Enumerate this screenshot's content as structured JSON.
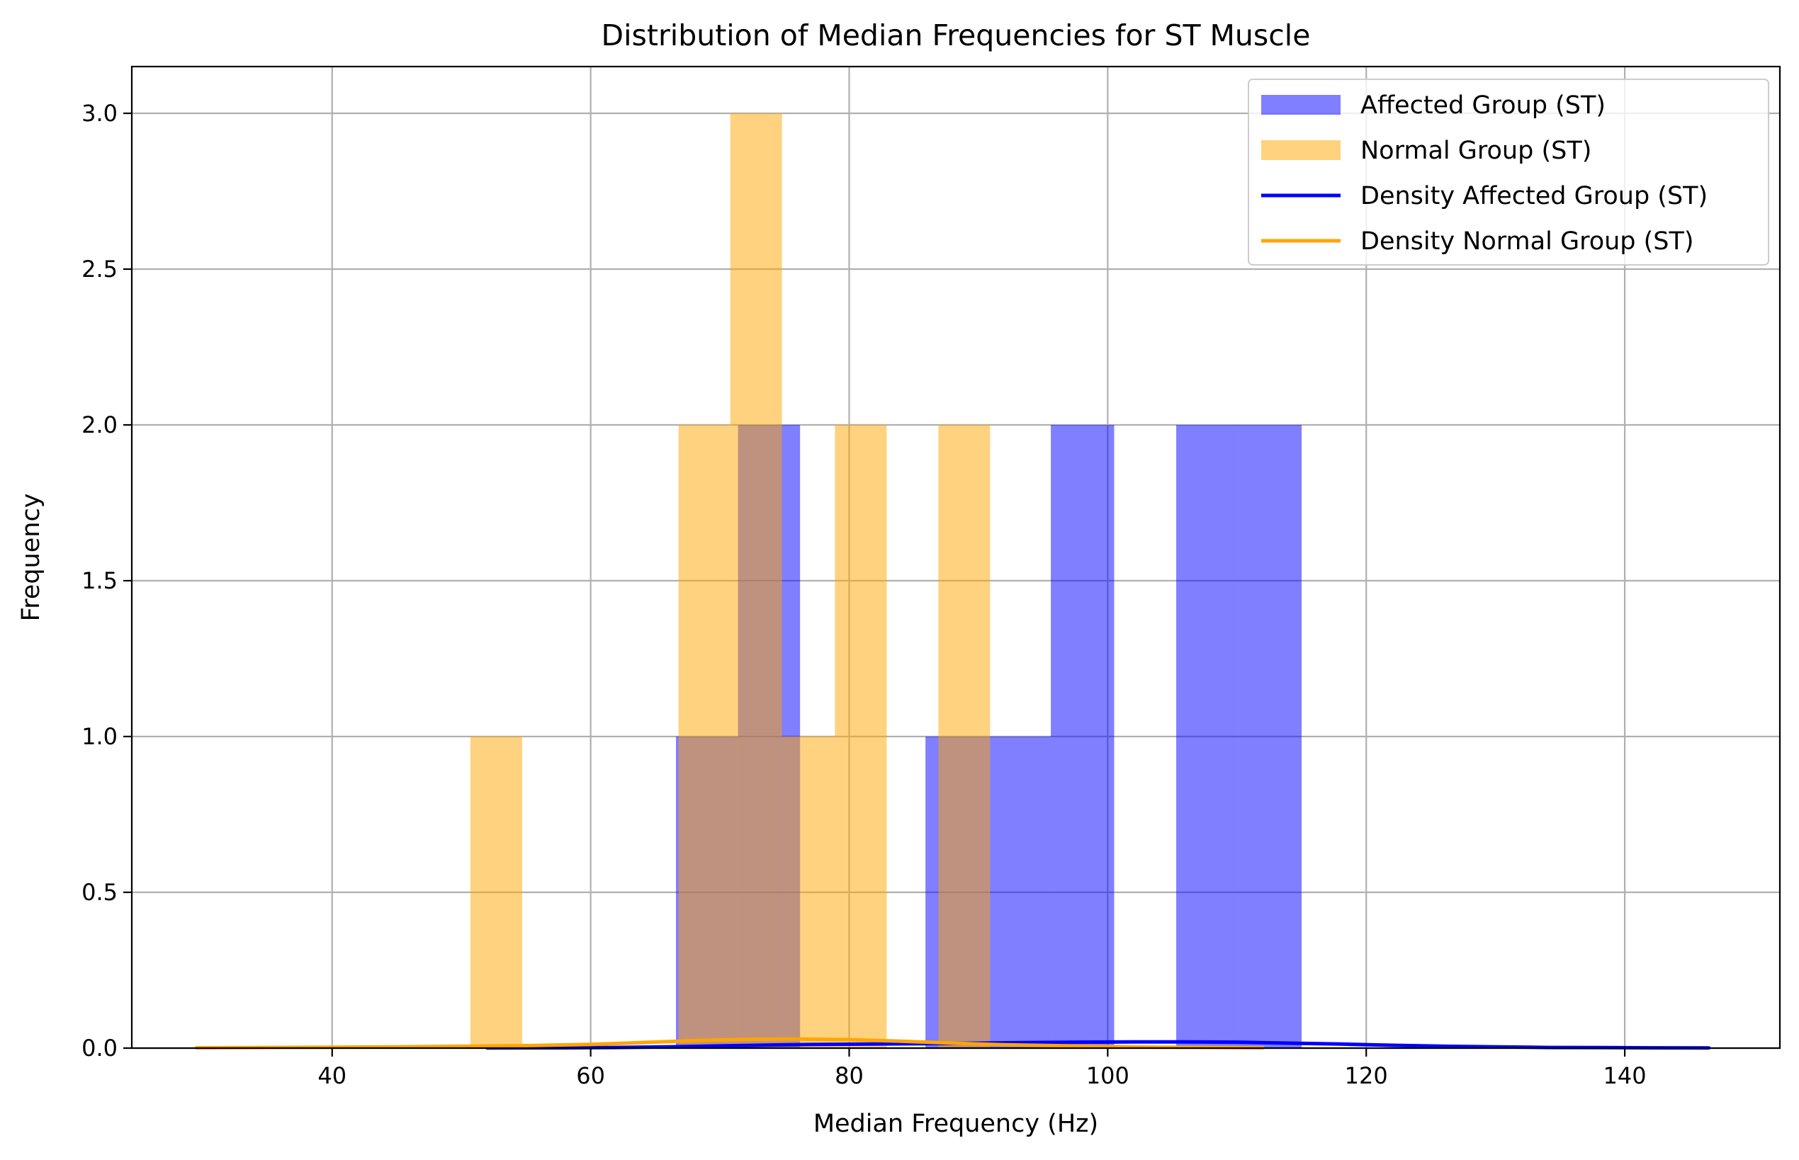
{
  "chart_data": {
    "type": "bar",
    "title": "Distribution of Median Frequencies for ST Muscle",
    "xlabel": "Median Frequency (Hz)",
    "ylabel": "Frequency",
    "xlim": [
      24.5,
      152.0
    ],
    "ylim": [
      0,
      3.15
    ],
    "xticks": [
      40,
      60,
      80,
      100,
      120,
      140
    ],
    "xtick_labels": [
      "40",
      "60",
      "80",
      "100",
      "120",
      "140"
    ],
    "yticks": [
      0,
      0.5,
      1,
      1.5,
      2,
      2.5,
      3
    ],
    "ytick_labels": [
      "0.0",
      "0.5",
      "1.0",
      "1.5",
      "2.0",
      "2.5",
      "3.0"
    ],
    "grid": true,
    "legend_position": "top-right",
    "series": [
      {
        "name": "Affected Group (ST)",
        "kind": "histogram",
        "color": "#0000ff",
        "opacity": 0.5,
        "bins": [
          {
            "x0": 66.6,
            "x1": 71.4,
            "count": 1
          },
          {
            "x0": 71.4,
            "x1": 76.2,
            "count": 2
          },
          {
            "x0": 76.2,
            "x1": 81.1,
            "count": 0
          },
          {
            "x0": 81.1,
            "x1": 85.9,
            "count": 0
          },
          {
            "x0": 85.9,
            "x1": 90.8,
            "count": 1
          },
          {
            "x0": 90.8,
            "x1": 95.6,
            "count": 1
          },
          {
            "x0": 95.6,
            "x1": 100.5,
            "count": 2
          },
          {
            "x0": 100.5,
            "x1": 105.3,
            "count": 0
          },
          {
            "x0": 105.3,
            "x1": 110.2,
            "count": 2
          },
          {
            "x0": 110.2,
            "x1": 115.0,
            "count": 2
          }
        ]
      },
      {
        "name": "Normal Group (ST)",
        "kind": "histogram",
        "color": "#ffa500",
        "opacity": 0.5,
        "bins": [
          {
            "x0": 50.7,
            "x1": 54.7,
            "count": 1
          },
          {
            "x0": 54.7,
            "x1": 58.8,
            "count": 0
          },
          {
            "x0": 58.8,
            "x1": 62.8,
            "count": 0
          },
          {
            "x0": 62.8,
            "x1": 66.8,
            "count": 0
          },
          {
            "x0": 66.8,
            "x1": 70.8,
            "count": 2
          },
          {
            "x0": 70.8,
            "x1": 74.8,
            "count": 3
          },
          {
            "x0": 74.8,
            "x1": 78.9,
            "count": 1
          },
          {
            "x0": 78.9,
            "x1": 82.9,
            "count": 2
          },
          {
            "x0": 82.9,
            "x1": 86.9,
            "count": 0
          },
          {
            "x0": 86.9,
            "x1": 90.9,
            "count": 2
          }
        ]
      },
      {
        "name": "Density Affected Group (ST)",
        "kind": "line",
        "color": "#0000ff",
        "x": [
          52,
          58,
          62,
          66,
          70,
          74,
          78,
          82,
          86,
          90,
          94,
          98,
          102,
          106,
          110,
          114,
          118,
          122,
          126,
          130,
          134,
          138,
          142,
          146.5
        ],
        "y": [
          0.0004,
          0.001,
          0.002,
          0.004,
          0.007,
          0.01,
          0.012,
          0.013,
          0.014,
          0.016,
          0.018,
          0.019,
          0.02,
          0.02,
          0.019,
          0.016,
          0.013,
          0.009,
          0.006,
          0.004,
          0.002,
          0.0015,
          0.001,
          0.0007
        ]
      },
      {
        "name": "Density Normal Group (ST)",
        "kind": "line",
        "color": "#ffa500",
        "x": [
          29.5,
          35,
          40,
          45,
          50,
          55,
          60,
          64,
          68,
          72,
          76,
          80,
          84,
          88,
          92,
          96,
          100,
          104,
          108,
          112
        ],
        "y": [
          0.001,
          0.002,
          0.003,
          0.004,
          0.006,
          0.008,
          0.012,
          0.018,
          0.024,
          0.028,
          0.029,
          0.027,
          0.022,
          0.016,
          0.011,
          0.008,
          0.005,
          0.003,
          0.002,
          0.001
        ]
      }
    ]
  }
}
